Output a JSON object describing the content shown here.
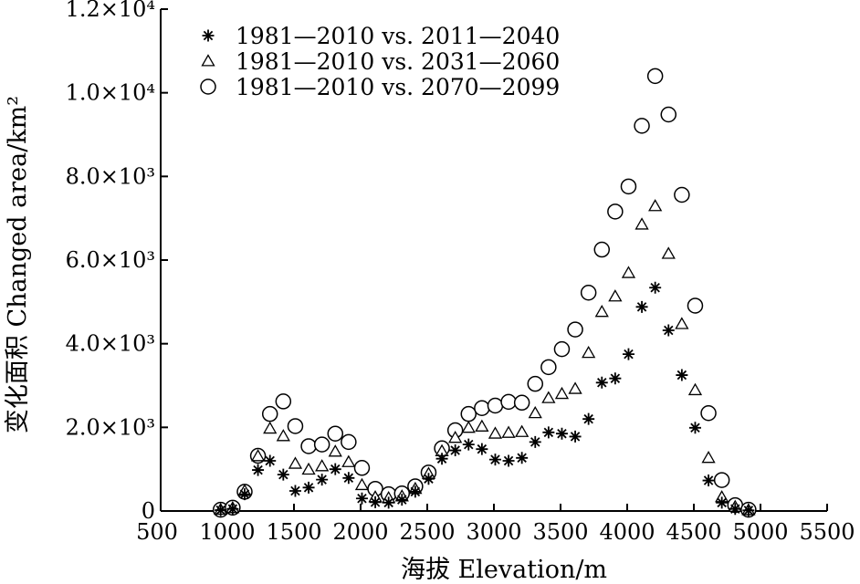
{
  "chart_data": {
    "type": "scatter",
    "xlabel": "海拔 Elevation/m",
    "ylabel": "变化面积 Changed area/km²",
    "xlim": [
      500,
      5500
    ],
    "ylim": [
      0,
      12000
    ],
    "x_ticks": [
      {
        "value": 500,
        "label": "500"
      },
      {
        "value": 1000,
        "label": "1000"
      },
      {
        "value": 1500,
        "label": "1500"
      },
      {
        "value": 2000,
        "label": "2000"
      },
      {
        "value": 2500,
        "label": "2500"
      },
      {
        "value": 3000,
        "label": "3000"
      },
      {
        "value": 3500,
        "label": "3500"
      },
      {
        "value": 4000,
        "label": "4000"
      },
      {
        "value": 4500,
        "label": "4500"
      },
      {
        "value": 5000,
        "label": "5000"
      },
      {
        "value": 5500,
        "label": "5500"
      }
    ],
    "y_ticks": [
      {
        "value": 0,
        "label": "0"
      },
      {
        "value": 2000,
        "label": "2.0×10³"
      },
      {
        "value": 4000,
        "label": "4.0×10³"
      },
      {
        "value": 6000,
        "label": "6.0×10³"
      },
      {
        "value": 8000,
        "label": "8.0×10³"
      },
      {
        "value": 10000,
        "label": "1.0×10⁴"
      },
      {
        "value": 12000,
        "label": "1.2×10⁴"
      }
    ],
    "legend_position": "top-left",
    "grid": false,
    "x": [
      950,
      1000,
      1050,
      1100,
      1150,
      1200,
      1250,
      1300,
      1350,
      1400,
      1450,
      1500,
      1550,
      1600,
      1650,
      1700,
      1750,
      1800,
      1850,
      1900,
      1950,
      2000,
      2050,
      2100,
      2150,
      2200,
      2250,
      2300,
      2350,
      2400,
      2450,
      2500,
      2550,
      2600,
      2650,
      2700,
      2750,
      2800,
      2850,
      2900,
      2950,
      3000,
      3050,
      3100,
      3150,
      3200,
      3250,
      3300,
      3350,
      3400,
      3450,
      3500,
      3550,
      3600,
      3650,
      3700,
      3750,
      3800,
      3850,
      3900,
      3950,
      4000,
      4050,
      4100,
      4150,
      4200,
      4250,
      4300,
      4350,
      4400,
      4450,
      4500,
      4550,
      4600,
      4650,
      4700,
      4750,
      4800,
      4850,
      4900
    ],
    "series": [
      {
        "name": "1981—2010 vs. 2011—2040",
        "marker": "asterisk",
        "points": [
          [
            950,
            20
          ],
          [
            1040,
            50
          ],
          [
            1130,
            400
          ],
          [
            1230,
            980
          ],
          [
            1320,
            1200
          ],
          [
            1420,
            870
          ],
          [
            1510,
            480
          ],
          [
            1610,
            560
          ],
          [
            1710,
            750
          ],
          [
            1810,
            1000
          ],
          [
            1910,
            790
          ],
          [
            2010,
            300
          ],
          [
            2110,
            210
          ],
          [
            2210,
            200
          ],
          [
            2310,
            270
          ],
          [
            2410,
            460
          ],
          [
            2510,
            770
          ],
          [
            2610,
            1250
          ],
          [
            2710,
            1450
          ],
          [
            2810,
            1590
          ],
          [
            2910,
            1480
          ],
          [
            3010,
            1230
          ],
          [
            3110,
            1200
          ],
          [
            3210,
            1270
          ],
          [
            3310,
            1650
          ],
          [
            3410,
            1880
          ],
          [
            3510,
            1850
          ],
          [
            3610,
            1780
          ],
          [
            3710,
            2200
          ],
          [
            3810,
            3070
          ],
          [
            3910,
            3170
          ],
          [
            4010,
            3750
          ],
          [
            4110,
            4880
          ],
          [
            4210,
            5340
          ],
          [
            4310,
            4320
          ],
          [
            4410,
            3250
          ],
          [
            4510,
            1990
          ],
          [
            4610,
            730
          ],
          [
            4710,
            200
          ],
          [
            4810,
            50
          ],
          [
            4910,
            15
          ]
        ]
      },
      {
        "name": "1981—2010 vs. 2031—2060",
        "marker": "triangle",
        "points": [
          [
            950,
            30
          ],
          [
            1040,
            70
          ],
          [
            1130,
            480
          ],
          [
            1230,
            1310
          ],
          [
            1320,
            1970
          ],
          [
            1420,
            1790
          ],
          [
            1510,
            1130
          ],
          [
            1610,
            990
          ],
          [
            1710,
            1070
          ],
          [
            1810,
            1420
          ],
          [
            1910,
            1170
          ],
          [
            2010,
            620
          ],
          [
            2110,
            330
          ],
          [
            2210,
            310
          ],
          [
            2310,
            350
          ],
          [
            2410,
            530
          ],
          [
            2510,
            890
          ],
          [
            2610,
            1430
          ],
          [
            2710,
            1750
          ],
          [
            2810,
            1990
          ],
          [
            2910,
            2020
          ],
          [
            3010,
            1850
          ],
          [
            3110,
            1870
          ],
          [
            3210,
            1890
          ],
          [
            3310,
            2340
          ],
          [
            3410,
            2700
          ],
          [
            3510,
            2800
          ],
          [
            3610,
            2920
          ],
          [
            3710,
            3780
          ],
          [
            3810,
            4760
          ],
          [
            3910,
            5130
          ],
          [
            4010,
            5690
          ],
          [
            4110,
            6850
          ],
          [
            4210,
            7290
          ],
          [
            4310,
            6150
          ],
          [
            4410,
            4470
          ],
          [
            4510,
            2890
          ],
          [
            4610,
            1270
          ],
          [
            4710,
            330
          ],
          [
            4810,
            100
          ],
          [
            4910,
            20
          ]
        ]
      },
      {
        "name": "1981—2010 vs. 2070—2099",
        "marker": "circle",
        "points": [
          [
            950,
            30
          ],
          [
            1040,
            80
          ],
          [
            1130,
            460
          ],
          [
            1230,
            1320
          ],
          [
            1320,
            2320
          ],
          [
            1420,
            2620
          ],
          [
            1510,
            2030
          ],
          [
            1610,
            1550
          ],
          [
            1710,
            1590
          ],
          [
            1810,
            1850
          ],
          [
            1910,
            1650
          ],
          [
            2010,
            1030
          ],
          [
            2110,
            530
          ],
          [
            2210,
            400
          ],
          [
            2310,
            420
          ],
          [
            2410,
            590
          ],
          [
            2510,
            920
          ],
          [
            2610,
            1500
          ],
          [
            2710,
            1930
          ],
          [
            2810,
            2320
          ],
          [
            2910,
            2460
          ],
          [
            3010,
            2520
          ],
          [
            3110,
            2610
          ],
          [
            3210,
            2590
          ],
          [
            3310,
            3040
          ],
          [
            3410,
            3440
          ],
          [
            3510,
            3870
          ],
          [
            3610,
            4340
          ],
          [
            3710,
            5220
          ],
          [
            3810,
            6250
          ],
          [
            3910,
            7160
          ],
          [
            4010,
            7760
          ],
          [
            4110,
            9210
          ],
          [
            4210,
            10400
          ],
          [
            4310,
            9480
          ],
          [
            4410,
            7560
          ],
          [
            4510,
            4910
          ],
          [
            4610,
            2340
          ],
          [
            4710,
            740
          ],
          [
            4810,
            140
          ],
          [
            4910,
            30
          ]
        ]
      }
    ]
  }
}
